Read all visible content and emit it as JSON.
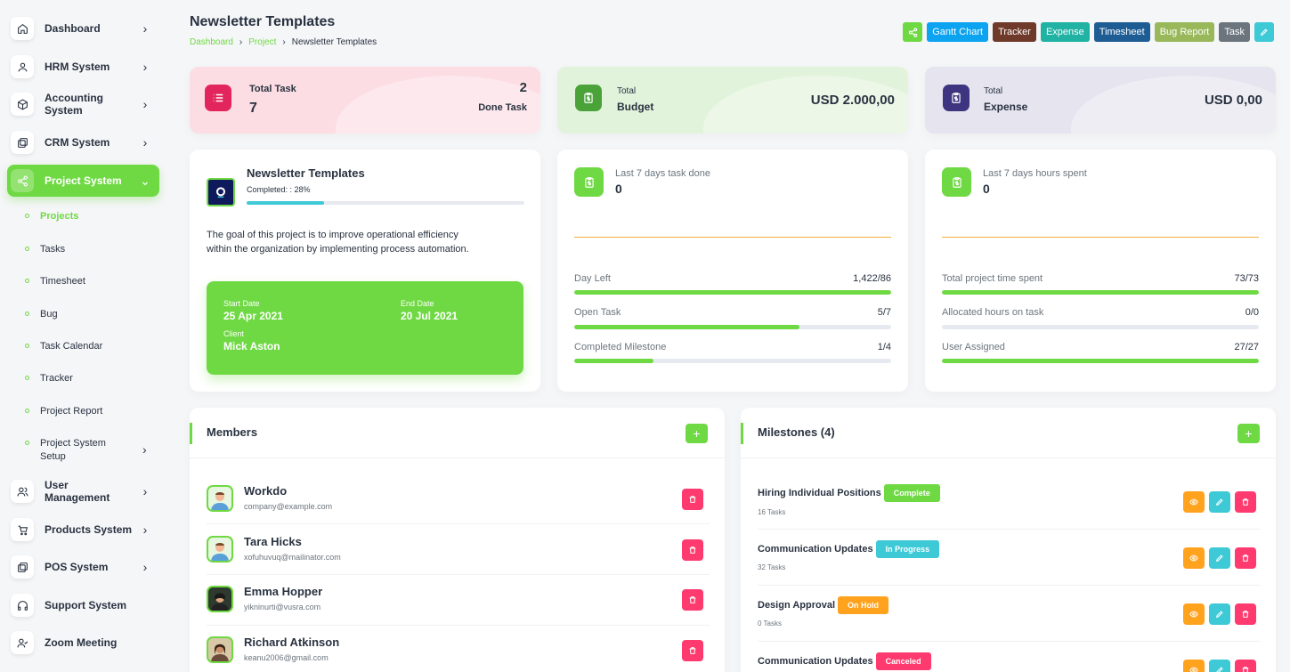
{
  "sidebar": {
    "items": [
      {
        "label": "Dashboard",
        "icon": "home-icon"
      },
      {
        "label": "HRM System",
        "icon": "user-icon"
      },
      {
        "label": "Accounting System",
        "icon": "box-icon"
      },
      {
        "label": "CRM System",
        "icon": "layers-icon"
      },
      {
        "label": "Project System",
        "icon": "share-icon"
      },
      {
        "label": "User Management",
        "icon": "users-icon"
      },
      {
        "label": "Products System",
        "icon": "cart-icon"
      },
      {
        "label": "POS System",
        "icon": "layers-icon"
      },
      {
        "label": "Support System",
        "icon": "headphones-icon"
      },
      {
        "label": "Zoom Meeting",
        "icon": "user-check-icon"
      }
    ],
    "sub_items": [
      {
        "label": "Projects"
      },
      {
        "label": "Tasks"
      },
      {
        "label": "Timesheet"
      },
      {
        "label": "Bug"
      },
      {
        "label": "Task Calendar"
      },
      {
        "label": "Tracker"
      },
      {
        "label": "Project Report"
      },
      {
        "label": "Project System Setup"
      }
    ]
  },
  "header": {
    "title": "Newsletter Templates",
    "breadcrumb": [
      "Dashboard",
      "Project",
      "Newsletter Templates"
    ],
    "actions": [
      {
        "label": "",
        "icon": "share-icon",
        "color": "#6fd943"
      },
      {
        "label": "Gantt Chart",
        "color": "#0ca3f0"
      },
      {
        "label": "Tracker",
        "color": "#6f3a2a"
      },
      {
        "label": "Expense",
        "color": "#20b2a3"
      },
      {
        "label": "Timesheet",
        "color": "#1e5d94"
      },
      {
        "label": "Bug Report",
        "color": "#98b85a"
      },
      {
        "label": "Task",
        "color": "#6c757d"
      },
      {
        "label": "",
        "icon": "pencil-icon",
        "color": "#3ec9d6"
      }
    ]
  },
  "stats": {
    "task": {
      "title": "Total Task",
      "total": "7",
      "done_count": "2",
      "done_label": "Done Task",
      "bg": "#fcdde3",
      "icon_color": "#e2255c"
    },
    "budget": {
      "label1": "Total",
      "label2": "Budget",
      "value": "USD 2.000,00",
      "bg": "#e2f3dc",
      "icon_color": "#4aa339"
    },
    "expense": {
      "label1": "Total",
      "label2": "Expense",
      "value": "USD 0,00",
      "bg": "#e5e4ef",
      "icon_color": "#3e3580"
    }
  },
  "project": {
    "name": "Newsletter Templates",
    "completed_label": "Completed: : 28%",
    "progress": 28,
    "description": "The goal of this project is to improve operational efficiency within the organization by implementing process automation.",
    "start_label": "Start Date",
    "start_date": "25 Apr 2021",
    "end_label": "End Date",
    "end_date": "20 Jul 2021",
    "client_label": "Client",
    "client": "Mick Aston"
  },
  "tasks_card": {
    "label": "Last 7 days task done",
    "value": "0",
    "rows": [
      {
        "label": "Day Left",
        "value": "1,422/86",
        "progress": 100
      },
      {
        "label": "Open Task",
        "value": "5/7",
        "progress": 71
      },
      {
        "label": "Completed Milestone",
        "value": "1/4",
        "progress": 25
      }
    ]
  },
  "hours_card": {
    "label": "Last 7 days hours spent",
    "value": "0",
    "rows": [
      {
        "label": "Total project time spent",
        "value": "73/73",
        "progress": 100
      },
      {
        "label": "Allocated hours on task",
        "value": "0/0",
        "progress": 0
      },
      {
        "label": "User Assigned",
        "value": "27/27",
        "progress": 100
      }
    ]
  },
  "members": {
    "title": "Members",
    "list": [
      {
        "name": "Workdo",
        "email": "company@example.com"
      },
      {
        "name": "Tara Hicks",
        "email": "xofuhuvuq@mailinator.com"
      },
      {
        "name": "Emma Hopper",
        "email": "yikninurti@vusra.com"
      },
      {
        "name": "Richard Atkinson",
        "email": "keanu2006@gmail.com"
      }
    ]
  },
  "milestones": {
    "title": "Milestones (4)",
    "list": [
      {
        "name": "Hiring Individual Positions",
        "status": "Complete",
        "status_color": "#6fd943",
        "tasks": "16 Tasks"
      },
      {
        "name": "Communication Updates",
        "status": "In Progress",
        "status_color": "#3ec9d6",
        "tasks": "32 Tasks"
      },
      {
        "name": "Design Approval",
        "status": "On Hold",
        "status_color": "#ffa21d",
        "tasks": "0 Tasks"
      },
      {
        "name": "Communication Updates",
        "status": "Canceled",
        "status_color": "#ff3a6e",
        "tasks": ""
      }
    ]
  }
}
